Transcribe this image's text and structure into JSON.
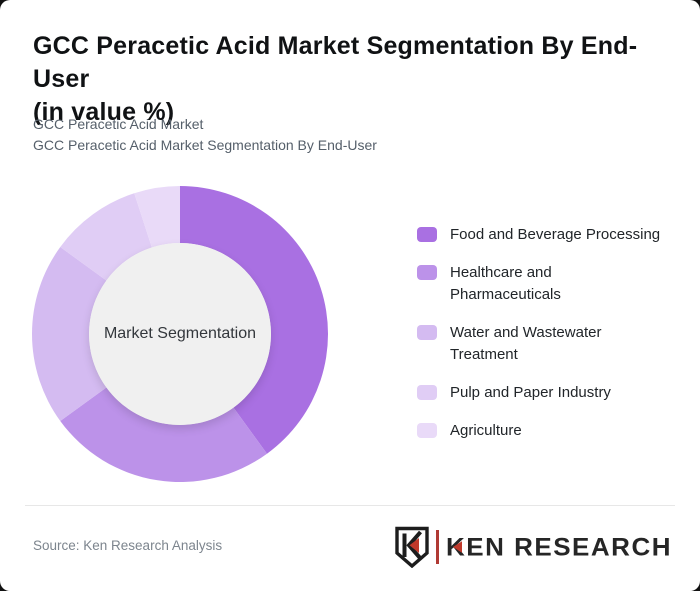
{
  "card": {
    "title": "GCC Peracetic Acid Market Segmentation By End-User\n(in value %)",
    "subtitle_line1": "GCC Peracetic Acid Market",
    "subtitle_line2": "GCC Peracetic Acid Market Segmentation By End-User"
  },
  "chart_data": {
    "type": "pie",
    "donut": true,
    "title": "GCC Peracetic Acid Market Segmentation By End-User (in value %)",
    "center_label": "Market Segmentation",
    "categories": [
      "Food and Beverage Processing",
      "Healthcare and\nPharmaceuticals",
      "Water and Wastewater\nTreatment",
      "Pulp and Paper Industry",
      "Agriculture"
    ],
    "values": [
      40,
      25,
      20,
      10,
      5
    ],
    "unit": "value %",
    "colors": [
      "#a970e2",
      "#bc92e9",
      "#d4bbf1",
      "#e0cdf5",
      "#e9daf8"
    ],
    "legend_position": "right",
    "start_angle_deg": -90,
    "hole_color": "#f0f0f0"
  },
  "footer": {
    "source": "Source: Ken Research Analysis",
    "logo_text": "KEN RESEARCH"
  }
}
